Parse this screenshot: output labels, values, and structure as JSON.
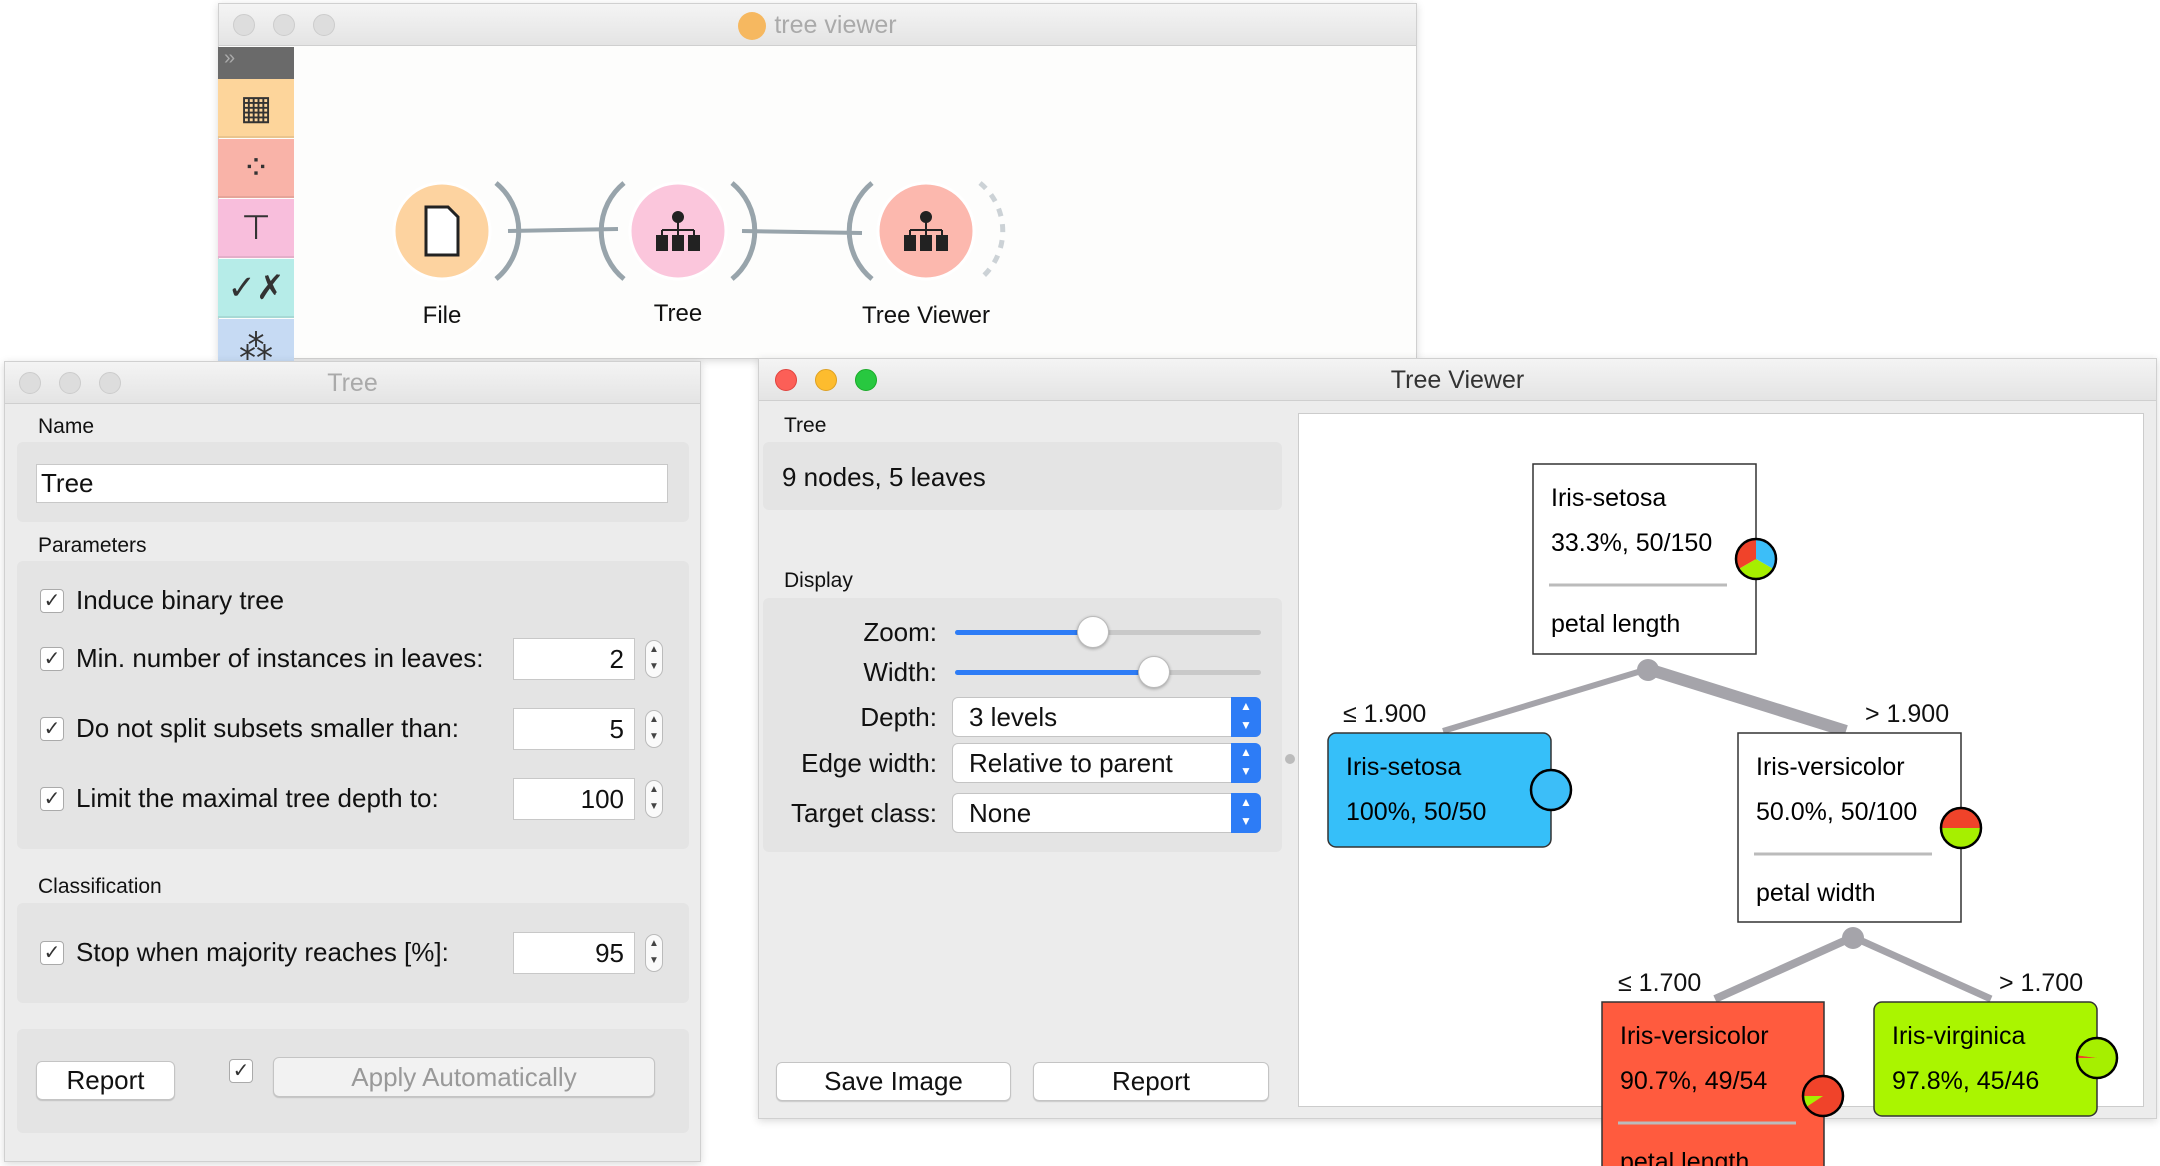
{
  "canvas_window": {
    "title": "tree viewer",
    "widgets": [
      {
        "label": "File",
        "color": "#fdd3a0"
      },
      {
        "label": "Tree",
        "color": "#fbc6dc"
      },
      {
        "label": "Tree Viewer",
        "color": "#fcb8ae"
      }
    ],
    "sidebar": [
      {
        "icon": "data-table-icon",
        "color": "#fdd59b"
      },
      {
        "icon": "scatter-plot-icon",
        "color": "#f9b3a8"
      },
      {
        "icon": "tree-model-icon",
        "color": "#f8bedc"
      },
      {
        "icon": "confusion-matrix-icon",
        "color": "#b6ece8"
      },
      {
        "icon": "clustering-icon",
        "color": "#c6daf3"
      }
    ]
  },
  "tree_window": {
    "title": "Tree",
    "name_label": "Name",
    "name_value": "Tree",
    "parameters_label": "Parameters",
    "parameters": [
      {
        "label": "Induce binary tree",
        "checked": true
      },
      {
        "label": "Min. number of instances in leaves:",
        "checked": true,
        "value": "2"
      },
      {
        "label": "Do not split subsets smaller than:",
        "checked": true,
        "value": "5"
      },
      {
        "label": "Limit the maximal tree depth to:",
        "checked": true,
        "value": "100"
      }
    ],
    "classification_label": "Classification",
    "stop": {
      "label": "Stop when majority reaches [%]:",
      "checked": true,
      "value": "95"
    },
    "report": "Report",
    "apply_auto": "Apply Automatically",
    "apply_checked": true
  },
  "viewer_window": {
    "title": "Tree Viewer",
    "tree_label": "Tree",
    "tree_info": "9 nodes, 5 leaves",
    "display_label": "Display",
    "zoom_label": "Zoom:",
    "zoom_level": 0.45,
    "width_label": "Width:",
    "width_level": 0.65,
    "depth_label": "Depth:",
    "depth_value": "3 levels",
    "edge_label": "Edge width:",
    "edge_value": "Relative to parent",
    "target_label": "Target class:",
    "target_value": "None",
    "save_image": "Save Image",
    "report": "Report"
  },
  "class_colors": {
    "setosa": "#3cbef8",
    "versicolor": "#f0432a",
    "virginica": "#a6ef00"
  },
  "tree": {
    "root": {
      "cls": "Iris-setosa",
      "stat": "33.3%, 50/150",
      "split": "petal length",
      "dist": [
        50,
        50,
        50
      ]
    },
    "e1": "≤ 1.900",
    "e2": "> 1.900",
    "setosa": {
      "cls": "Iris-setosa",
      "stat": "100%, 50/50",
      "dist": [
        50,
        0,
        0
      ],
      "fill": "#36bff9"
    },
    "vers": {
      "cls": "Iris-versicolor",
      "stat": "50.0%, 50/100",
      "split": "petal width",
      "dist": [
        0,
        50,
        50
      ]
    },
    "e3": "≤ 1.700",
    "e4": "> 1.700",
    "vers2": {
      "cls": "Iris-versicolor",
      "stat": "90.7%, 49/54",
      "split": "petal length",
      "dist": [
        0,
        49,
        5
      ],
      "fill": "#ff5b3e"
    },
    "virg": {
      "cls": "Iris-virginica",
      "stat": "97.8%, 45/46",
      "dist": [
        0,
        1,
        45
      ],
      "fill": "#aaf500"
    }
  }
}
